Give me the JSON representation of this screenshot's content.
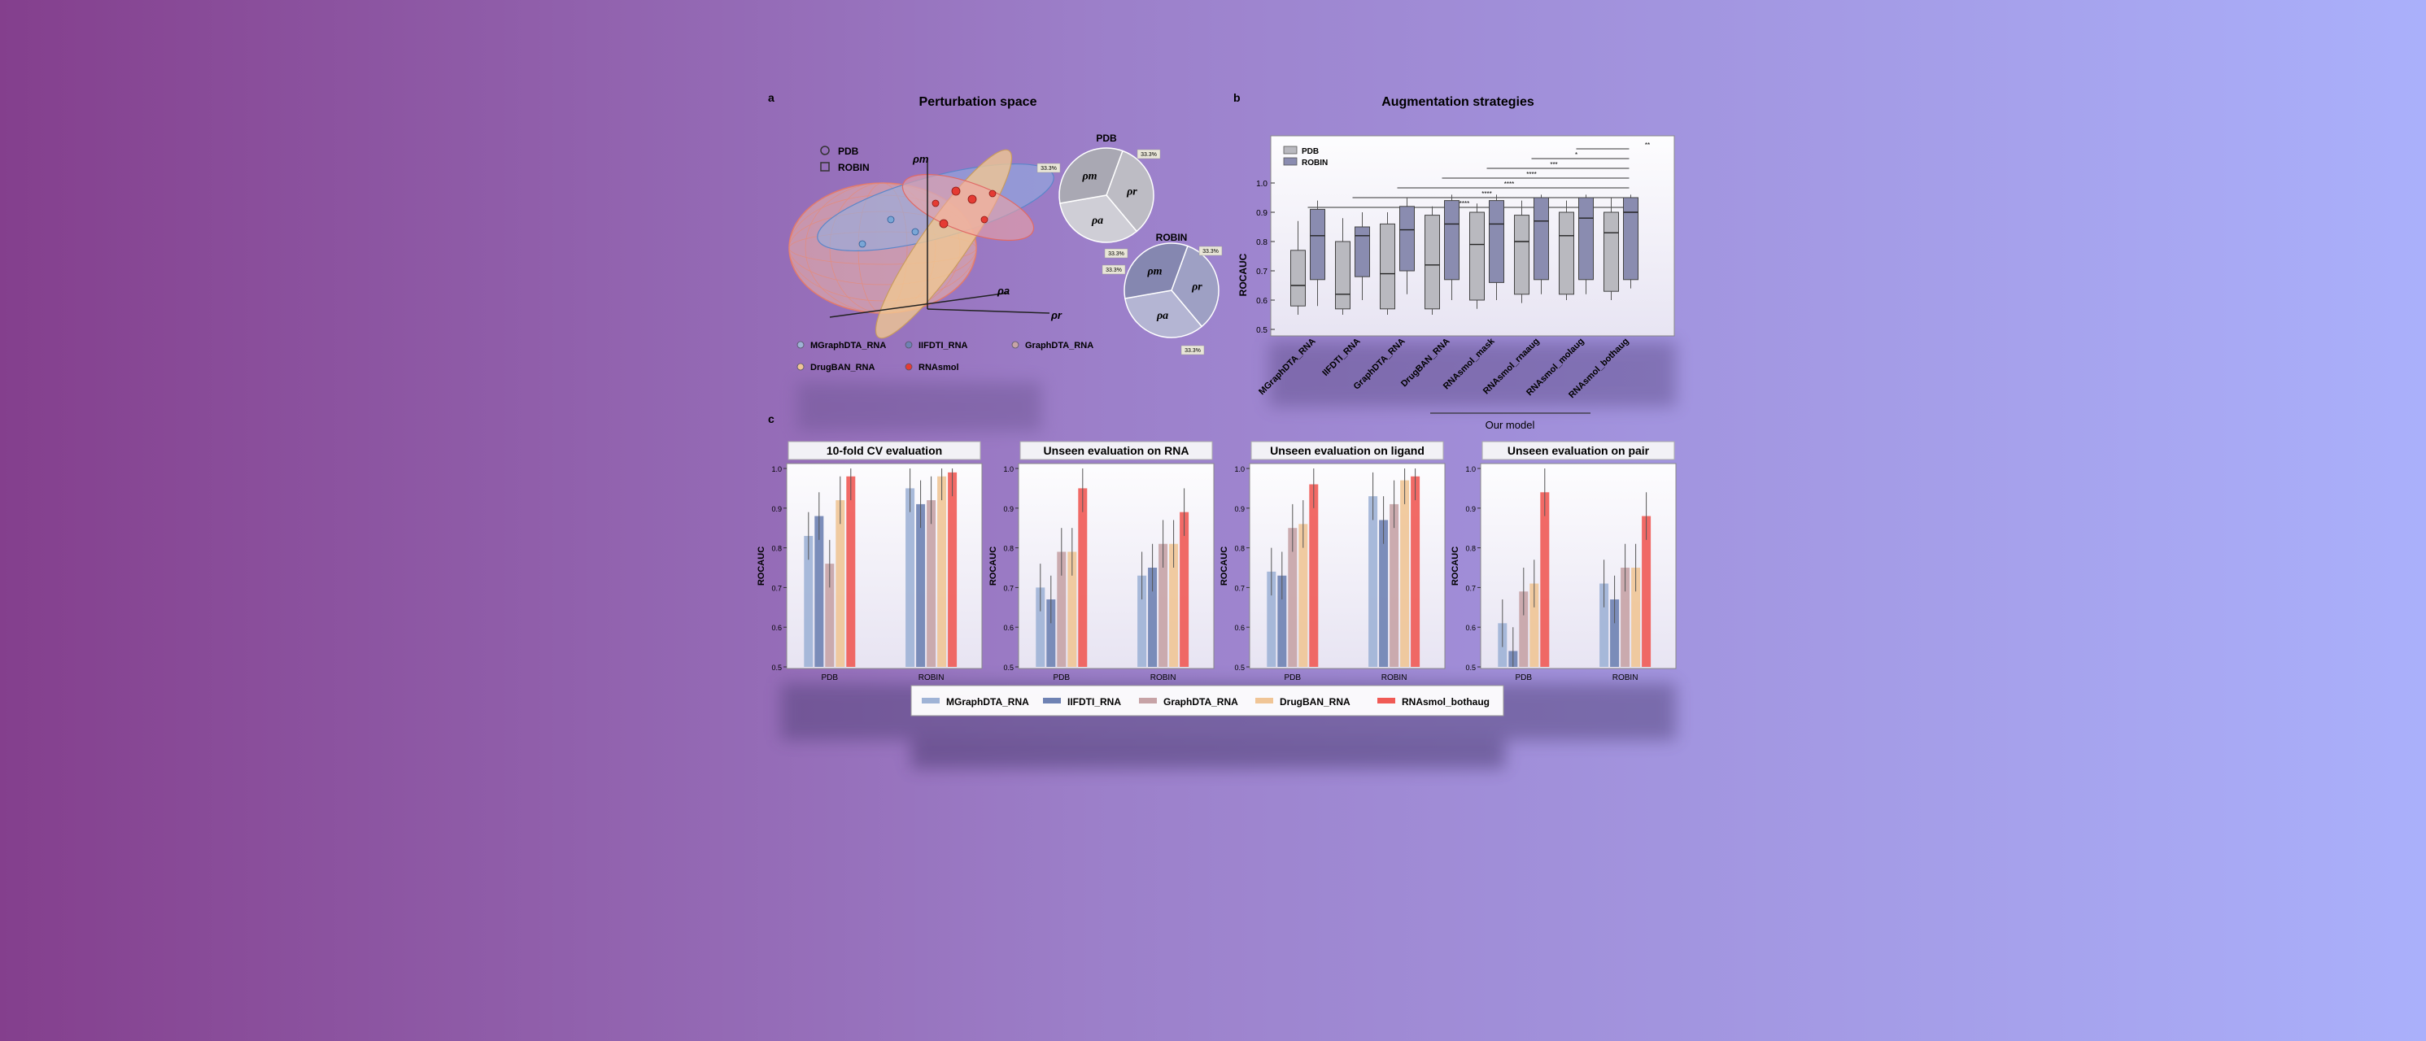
{
  "colors": {
    "bg_left": "#843f8d",
    "bg_mid": "#9e86cf",
    "bg_right": "#aab0fb",
    "pdb_gray": "#b9b9bf",
    "robin_slate": "#8a8cb0",
    "mgraphdta": "#9fb3d6",
    "iifdti": "#6e82b3",
    "graphdta": "#c7a3a6",
    "drugban": "#f0c596",
    "rnasmol": "#f05a55"
  },
  "panel_a": {
    "letter": "a",
    "title": "Perturbation space",
    "legend_shapes": [
      "PDB",
      "ROBIN"
    ],
    "axes": {
      "pm": "ρm",
      "pa": "ρa",
      "pr": "ρr"
    },
    "pie_pdb": {
      "title": "PDB",
      "labels": [
        "ρr",
        "ρa",
        "ρm"
      ],
      "values": [
        33.3,
        33.3,
        33.3
      ],
      "tags": [
        "33.3%",
        "33.3%",
        "33.3%"
      ]
    },
    "pie_robin": {
      "title": "ROBIN",
      "labels": [
        "ρr",
        "ρa",
        "ρm"
      ],
      "values": [
        33.3,
        33.3,
        33.3
      ],
      "tags": [
        "33.3%",
        "33.3%",
        "33.3%"
      ]
    },
    "model_legend": [
      "MGraphDTA_RNA",
      "IIFDTI_RNA",
      "GraphDTA_RNA",
      "DrugBAN_RNA",
      "RNAsmol"
    ]
  },
  "panel_b": {
    "letter": "b",
    "title": "Augmentation strategies",
    "legend": [
      "PDB",
      "ROBIN"
    ],
    "ylabel": "ROCAUC",
    "yticks": [
      "1.0",
      "0.9",
      "0.8",
      "0.7",
      "0.6",
      "0.5"
    ],
    "sig_marks": [
      "**",
      "*",
      "***",
      "****",
      "****",
      "****",
      "****"
    ],
    "bracket_label": "Our model",
    "chart_data": {
      "type": "box",
      "categories": [
        "MGraphDTA_RNA",
        "IIFDTI_RNA",
        "GraphDTA_RNA",
        "DrugBAN_RNA",
        "RNAsmol_mask",
        "RNAsmol_rnaaug",
        "RNAsmol_molaug",
        "RNAsmol_bothaug"
      ],
      "series": [
        {
          "name": "PDB",
          "q1": [
            0.58,
            0.57,
            0.57,
            0.57,
            0.6,
            0.62,
            0.62,
            0.63
          ],
          "median": [
            0.65,
            0.62,
            0.69,
            0.72,
            0.79,
            0.8,
            0.82,
            0.83
          ],
          "q3": [
            0.77,
            0.8,
            0.86,
            0.89,
            0.9,
            0.89,
            0.9,
            0.9
          ],
          "min": [
            0.55,
            0.55,
            0.55,
            0.55,
            0.57,
            0.59,
            0.6,
            0.6
          ],
          "max": [
            0.87,
            0.88,
            0.9,
            0.92,
            0.93,
            0.94,
            0.94,
            0.95
          ]
        },
        {
          "name": "ROBIN",
          "q1": [
            0.67,
            0.68,
            0.7,
            0.67,
            0.66,
            0.67,
            0.67,
            0.67
          ],
          "median": [
            0.82,
            0.82,
            0.84,
            0.86,
            0.86,
            0.87,
            0.88,
            0.9
          ],
          "q3": [
            0.91,
            0.85,
            0.92,
            0.94,
            0.94,
            0.95,
            0.95,
            0.95
          ],
          "min": [
            0.58,
            0.6,
            0.62,
            0.6,
            0.6,
            0.62,
            0.62,
            0.64
          ],
          "max": [
            0.94,
            0.9,
            0.95,
            0.96,
            0.96,
            0.96,
            0.96,
            0.96
          ]
        }
      ],
      "ylim": [
        0.5,
        1.0
      ]
    }
  },
  "panel_c": {
    "letter": "c",
    "ylabel": "ROCAUC",
    "yticks": [
      "1.0",
      "0.9",
      "0.8",
      "0.7",
      "0.6",
      "0.5"
    ],
    "group_labels": [
      "PDB",
      "ROBIN"
    ],
    "series_names": [
      "MGraphDTA_RNA",
      "IIFDTI_RNA",
      "GraphDTA_RNA",
      "DrugBAN_RNA",
      "RNAsmol_bothaug"
    ],
    "chart_data": [
      {
        "type": "bar",
        "title": "10-fold CV evaluation",
        "categories": [
          "PDB",
          "ROBIN"
        ],
        "ylim": [
          0.5,
          1.0
        ],
        "series": [
          {
            "name": "MGraphDTA_RNA",
            "values": [
              0.83,
              0.95
            ]
          },
          {
            "name": "IIFDTI_RNA",
            "values": [
              0.88,
              0.91
            ]
          },
          {
            "name": "GraphDTA_RNA",
            "values": [
              0.76,
              0.92
            ]
          },
          {
            "name": "DrugBAN_RNA",
            "values": [
              0.92,
              0.98
            ]
          },
          {
            "name": "RNAsmol_bothaug",
            "values": [
              0.98,
              0.99
            ]
          }
        ]
      },
      {
        "type": "bar",
        "title": "Unseen evaluation on RNA",
        "categories": [
          "PDB",
          "ROBIN"
        ],
        "ylim": [
          0.5,
          1.0
        ],
        "series": [
          {
            "name": "MGraphDTA_RNA",
            "values": [
              0.7,
              0.73
            ]
          },
          {
            "name": "IIFDTI_RNA",
            "values": [
              0.67,
              0.75
            ]
          },
          {
            "name": "GraphDTA_RNA",
            "values": [
              0.79,
              0.81
            ]
          },
          {
            "name": "DrugBAN_RNA",
            "values": [
              0.79,
              0.81
            ]
          },
          {
            "name": "RNAsmol_bothaug",
            "values": [
              0.95,
              0.89
            ]
          }
        ]
      },
      {
        "type": "bar",
        "title": "Unseen evaluation on ligand",
        "categories": [
          "PDB",
          "ROBIN"
        ],
        "ylim": [
          0.5,
          1.0
        ],
        "series": [
          {
            "name": "MGraphDTA_RNA",
            "values": [
              0.74,
              0.93
            ]
          },
          {
            "name": "IIFDTI_RNA",
            "values": [
              0.73,
              0.87
            ]
          },
          {
            "name": "GraphDTA_RNA",
            "values": [
              0.85,
              0.91
            ]
          },
          {
            "name": "DrugBAN_RNA",
            "values": [
              0.86,
              0.97
            ]
          },
          {
            "name": "RNAsmol_bothaug",
            "values": [
              0.96,
              0.98
            ]
          }
        ]
      },
      {
        "type": "bar",
        "title": "Unseen evaluation on pair",
        "categories": [
          "PDB",
          "ROBIN"
        ],
        "ylim": [
          0.5,
          1.0
        ],
        "series": [
          {
            "name": "MGraphDTA_RNA",
            "values": [
              0.61,
              0.71
            ]
          },
          {
            "name": "IIFDTI_RNA",
            "values": [
              0.54,
              0.67
            ]
          },
          {
            "name": "GraphDTA_RNA",
            "values": [
              0.69,
              0.75
            ]
          },
          {
            "name": "DrugBAN_RNA",
            "values": [
              0.71,
              0.75
            ]
          },
          {
            "name": "RNAsmol_bothaug",
            "values": [
              0.94,
              0.88
            ]
          }
        ]
      }
    ],
    "legend": [
      "MGraphDTA_RNA",
      "IIFDTI_RNA",
      "GraphDTA_RNA",
      "DrugBAN_RNA",
      "RNAsmol_bothaug"
    ]
  }
}
